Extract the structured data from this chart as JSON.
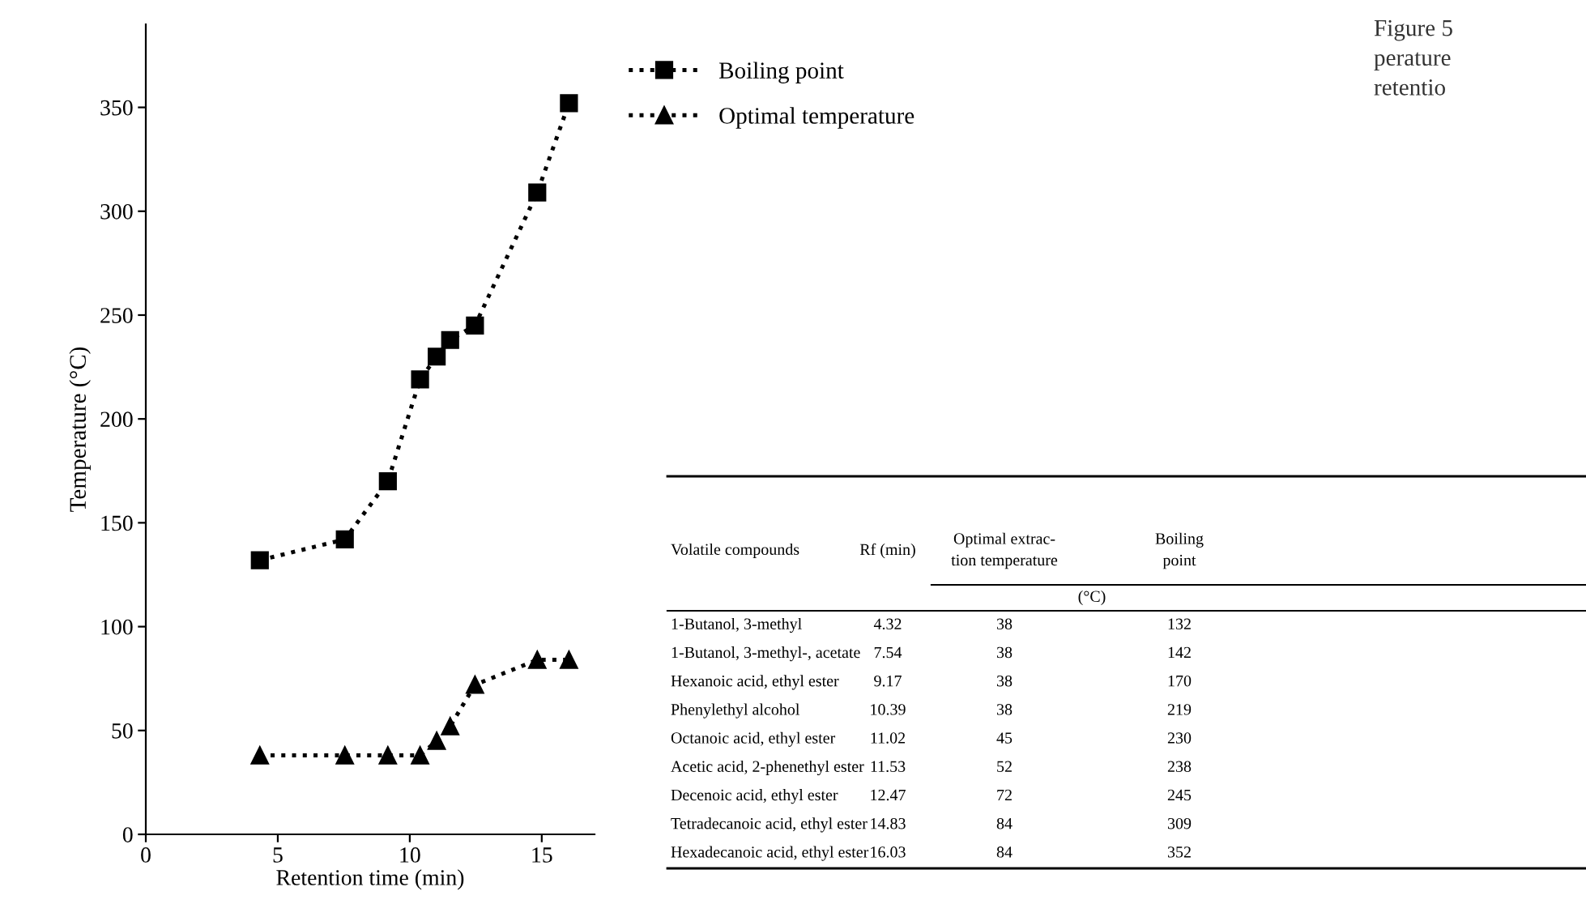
{
  "chart_data": {
    "type": "line",
    "xlabel": "Retention time (min)",
    "ylabel": "Temperature (°C)",
    "x": [
      4.32,
      7.54,
      9.17,
      10.39,
      11.02,
      11.53,
      12.47,
      14.83,
      16.03
    ],
    "series": [
      {
        "name": "Boiling point",
        "color": "#000000",
        "marker": "square",
        "values": [
          132,
          142,
          170,
          219,
          230,
          238,
          245,
          309,
          352
        ]
      },
      {
        "name": "Optimal temperature",
        "color": "#000000",
        "marker": "triangle",
        "values": [
          38,
          38,
          38,
          38,
          45,
          52,
          72,
          84,
          84
        ]
      }
    ],
    "xlim": [
      0,
      17
    ],
    "xticks": [
      0,
      5,
      10,
      15
    ],
    "ylim": [
      0,
      390
    ],
    "yticks": [
      0,
      50,
      100,
      150,
      200,
      250,
      300,
      350
    ],
    "grid": false,
    "legend": "right",
    "line_style": "dotted",
    "annotations": [
      "Figure 5\nperature\nretentio",
      "Volatile compounds",
      "Rf (min)",
      "Optimal extrac-\ntion temperature",
      "Boiling\npoint",
      "(°C)",
      "1-Butanol, 3-methyl",
      "4.32",
      "38",
      "132",
      "1-Butanol, 3-methyl-, acetate",
      "7.54",
      "38",
      "142",
      "Hexanoic acid, ethyl ester",
      "9.17",
      "38",
      "170",
      "Phenylethyl alcohol",
      "10.39",
      "38",
      "219",
      "Octanoic acid, ethyl ester",
      "11.02",
      "45",
      "230",
      "Acetic acid, 2-phenethyl ester",
      "11.53",
      "52",
      "238",
      "Decenoic acid, ethyl ester",
      "12.47",
      "72",
      "245",
      "Tetradecanoic acid, ethyl ester",
      "14.83",
      "84",
      "309",
      "Hexadecanoic acid, ethyl ester",
      "16.03",
      "84",
      "352"
    ]
  }
}
